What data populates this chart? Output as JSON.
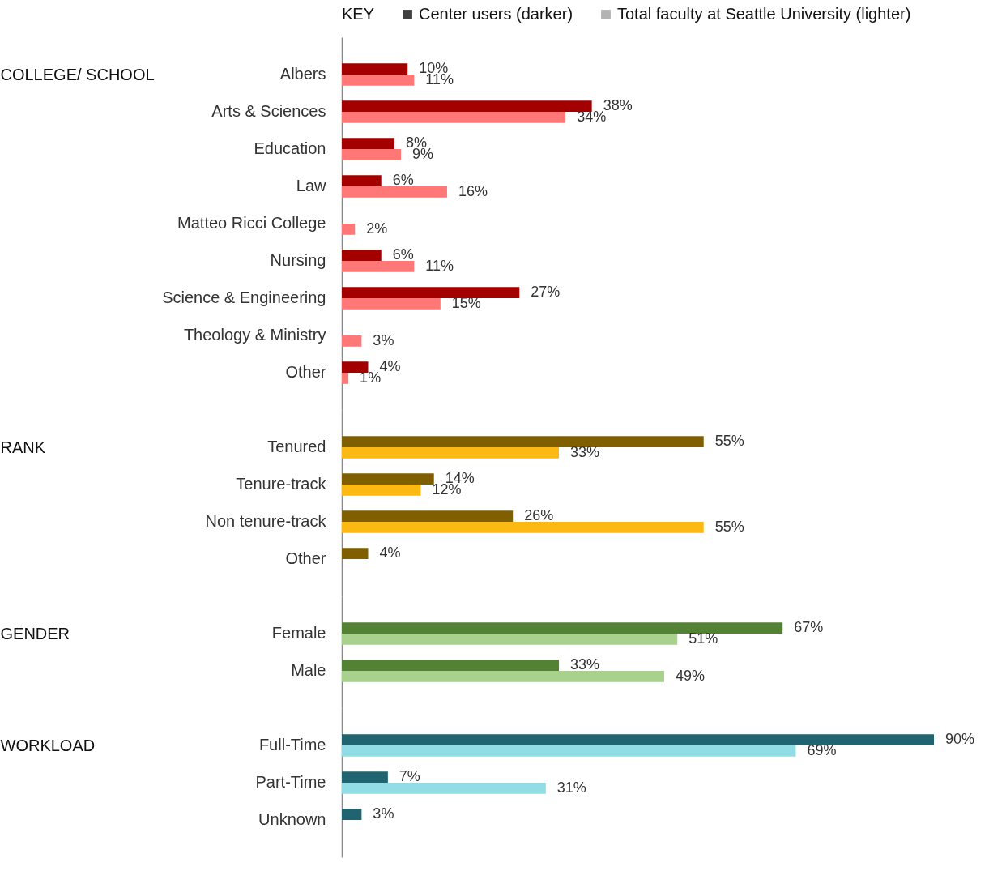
{
  "chart_data": [
    {
      "type": "bar",
      "orientation": "horizontal",
      "ylabel": "COLLEGE/ SCHOOL",
      "legend_title": "KEY",
      "legend": "top right",
      "tick_labels": "y",
      "categories": [
        "Albers",
        "Arts & Sciences",
        "Education",
        "Law",
        "Matteo Ricci College",
        "Nursing",
        "Science & Engineering",
        "Theology & Ministry",
        "Other"
      ],
      "series": [
        {
          "name": "Center users (darker)",
          "color": "#404040",
          "colors": [
            "#a50000",
            "#a50000",
            "#a50000",
            "#a50000",
            "#a50000",
            "#a50000",
            "#a50000",
            "#a50000",
            "#a50000"
          ],
          "values": [
            10,
            38,
            8,
            6,
            null,
            6,
            27,
            null,
            4
          ],
          "value_labels": [
            "10%",
            "38%",
            "8%",
            "6%",
            null,
            "6%",
            "27%",
            null,
            "4%"
          ]
        },
        {
          "name": "Total faculty at Seattle University (lighter)",
          "color": "#b3b3b3",
          "colors": [
            "#ff7777",
            "#ff7777",
            "#ff7777",
            "#ff7777",
            "#ff7777",
            "#ff7777",
            "#ff7777",
            "#ff7777",
            "#ff7777"
          ],
          "values": [
            11,
            34,
            9,
            16,
            2,
            11,
            15,
            3,
            1
          ],
          "value_labels": [
            "11%",
            "34%",
            "9%",
            "16%",
            "2%",
            "11%",
            "15%",
            "3%",
            "1%"
          ]
        }
      ]
    },
    {
      "type": "bar",
      "orientation": "horizontal",
      "ylabel": "RANK",
      "tick_labels": "y",
      "categories": [
        "Tenured",
        "Tenure-track",
        "Non tenure-track",
        "Other"
      ],
      "series": [
        {
          "colors": [
            "#7f5f00",
            "#7f5f00",
            "#7f5f00",
            "#7f5f00"
          ],
          "values": [
            55,
            14,
            26,
            4
          ],
          "value_labels": [
            "55%",
            "14%",
            "26%",
            "4%"
          ]
        },
        {
          "colors": [
            "#fdb913",
            "#fdb913",
            "#fdb913",
            "#fdb913"
          ],
          "values": [
            33,
            12,
            55,
            null
          ],
          "value_labels": [
            "33%",
            "12%",
            "55%",
            null
          ]
        }
      ]
    },
    {
      "type": "bar",
      "orientation": "horizontal",
      "ylabel": "GENDER",
      "tick_labels": "y",
      "categories": [
        "Female",
        "Male"
      ],
      "series": [
        {
          "colors": [
            "#548235",
            "#548235"
          ],
          "values": [
            67,
            33
          ],
          "value_labels": [
            "67%",
            "33%"
          ]
        },
        {
          "colors": [
            "#a9d18e",
            "#a9d18e"
          ],
          "values": [
            51,
            49
          ],
          "value_labels": [
            "51%",
            "49%"
          ]
        }
      ]
    },
    {
      "type": "bar",
      "orientation": "horizontal",
      "ylabel": "WORKLOAD",
      "tick_labels": "y",
      "categories": [
        "Full-Time",
        "Part-Time",
        "Unknown"
      ],
      "series": [
        {
          "colors": [
            "#1f6470",
            "#1f6470",
            "#1f6470"
          ],
          "values": [
            90,
            7,
            3
          ],
          "value_labels": [
            "90%",
            "7%",
            "3%"
          ]
        },
        {
          "colors": [
            "#92dce5",
            "#92dce5",
            "#92dce5"
          ],
          "values": [
            69,
            31,
            null
          ],
          "value_labels": [
            "69%",
            "31%",
            null
          ]
        }
      ]
    }
  ]
}
